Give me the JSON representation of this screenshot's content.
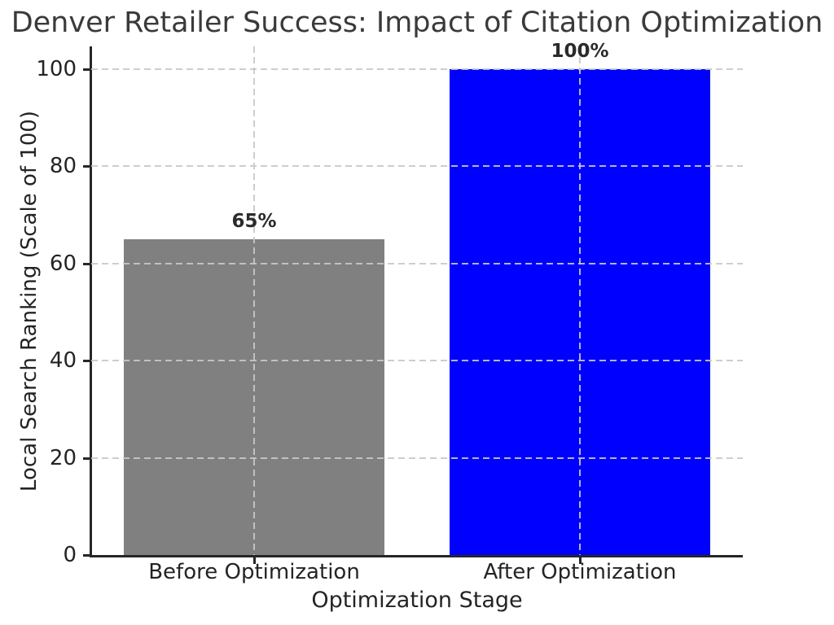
{
  "chart_data": {
    "type": "bar",
    "title": "Denver Retailer Success: Impact of Citation Optimization",
    "xlabel": "Optimization Stage",
    "ylabel": "Local Search Ranking (Scale of 100)",
    "categories": [
      "Before Optimization",
      "After Optimization"
    ],
    "values": [
      65,
      100
    ],
    "value_labels": [
      "65%",
      "100%"
    ],
    "bar_colors": [
      "#808080",
      "#0000ff"
    ],
    "yticks": [
      0,
      20,
      40,
      60,
      80,
      100
    ],
    "ylim": [
      0,
      104.7
    ],
    "grid": "dashed gridlines on both axes, drawn above bars",
    "legend_position": "none"
  },
  "colors": {
    "background": "#ffffff",
    "title_text": "#3a3a3a",
    "axis_text": "#242424",
    "spine": "#262626",
    "gridline": "#c8c8c8",
    "bar_before": "#808080",
    "bar_after": "#0000ff"
  }
}
